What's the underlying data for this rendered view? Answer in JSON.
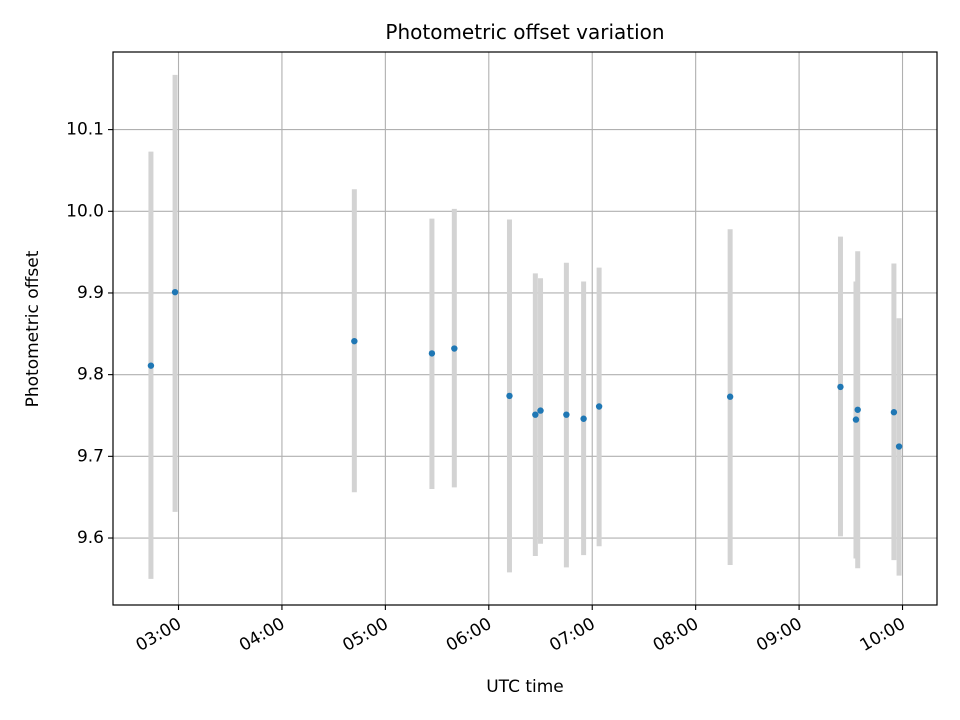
{
  "chart_data": {
    "type": "scatter",
    "title": "Photometric offset variation",
    "xlabel": "UTC time",
    "ylabel": "Photometric offset",
    "x_unit": "UTC time (HH:MM)",
    "xlim": [
      "02:22",
      "10:20"
    ],
    "ylim": [
      9.518,
      10.195
    ],
    "x_ticks": [
      "03:00",
      "04:00",
      "05:00",
      "06:00",
      "07:00",
      "08:00",
      "09:00",
      "10:00"
    ],
    "y_ticks": [
      "9.6",
      "9.7",
      "9.8",
      "9.9",
      "10.0",
      "10.1"
    ],
    "grid": true,
    "colors": {
      "point": "#1f77b4",
      "errorbar": "#d3d3d3",
      "grid": "#b0b0b0"
    },
    "points": [
      {
        "x": "02:44",
        "y": 9.811,
        "ylow": 9.55,
        "yhigh": 10.073
      },
      {
        "x": "02:58",
        "y": 9.901,
        "ylow": 9.632,
        "yhigh": 10.167
      },
      {
        "x": "04:42",
        "y": 9.841,
        "ylow": 9.656,
        "yhigh": 10.027
      },
      {
        "x": "05:27",
        "y": 9.826,
        "ylow": 9.66,
        "yhigh": 9.991
      },
      {
        "x": "05:40",
        "y": 9.832,
        "ylow": 9.662,
        "yhigh": 10.003
      },
      {
        "x": "06:12",
        "y": 9.774,
        "ylow": 9.558,
        "yhigh": 9.99
      },
      {
        "x": "06:27",
        "y": 9.751,
        "ylow": 9.578,
        "yhigh": 9.924
      },
      {
        "x": "06:30",
        "y": 9.756,
        "ylow": 9.593,
        "yhigh": 9.918
      },
      {
        "x": "06:45",
        "y": 9.751,
        "ylow": 9.564,
        "yhigh": 9.937
      },
      {
        "x": "06:55",
        "y": 9.746,
        "ylow": 9.579,
        "yhigh": 9.914
      },
      {
        "x": "07:04",
        "y": 9.761,
        "ylow": 9.59,
        "yhigh": 9.931
      },
      {
        "x": "08:20",
        "y": 9.773,
        "ylow": 9.567,
        "yhigh": 9.978
      },
      {
        "x": "09:24",
        "y": 9.785,
        "ylow": 9.602,
        "yhigh": 9.969
      },
      {
        "x": "09:33",
        "y": 9.745,
        "ylow": 9.575,
        "yhigh": 9.914
      },
      {
        "x": "09:34",
        "y": 9.757,
        "ylow": 9.563,
        "yhigh": 9.951
      },
      {
        "x": "09:55",
        "y": 9.754,
        "ylow": 9.573,
        "yhigh": 9.936
      },
      {
        "x": "09:58",
        "y": 9.712,
        "ylow": 9.554,
        "yhigh": 9.869
      }
    ]
  }
}
